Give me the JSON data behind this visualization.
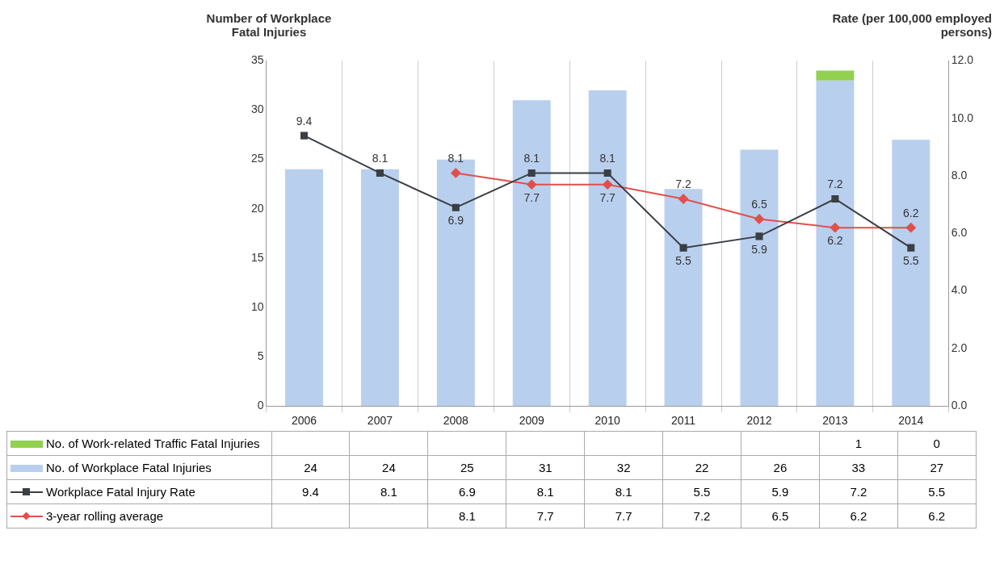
{
  "chart_data": {
    "type": "bar",
    "ylabel": "Number of Workplace Fatal Injuries",
    "y2label": "Rate (per 100,000 employed persons)",
    "categories": [
      "2006",
      "2007",
      "2008",
      "2009",
      "2010",
      "2011",
      "2012",
      "2013",
      "2014"
    ],
    "stacked": true,
    "series": [
      {
        "name": "No. of Workplace Fatal Injuries",
        "color": "#b9cfee",
        "values": [
          24,
          24,
          25,
          31,
          32,
          22,
          26,
          33,
          27
        ]
      },
      {
        "name": "No. of Work-related Traffic Fatal Injuries",
        "color": "#92d050",
        "values": [
          null,
          null,
          null,
          null,
          null,
          null,
          null,
          1,
          0
        ]
      },
      {
        "name": "Workplace Fatal Injury Rate",
        "type": "line",
        "axis": "y2",
        "marker": "square",
        "color": "#3a3f44",
        "values": [
          9.4,
          8.1,
          6.9,
          8.1,
          8.1,
          5.5,
          5.9,
          7.2,
          5.5
        ]
      },
      {
        "name": "3-year rolling average",
        "type": "line",
        "axis": "y2",
        "marker": "diamond",
        "color": "#e0504a",
        "values": [
          null,
          null,
          8.1,
          7.7,
          7.7,
          7.2,
          6.5,
          6.2,
          6.2
        ]
      }
    ],
    "annotations": [
      "9.4",
      "8.1",
      "6.9",
      "8.1",
      "8.1",
      "5.5",
      "5.9",
      "7.2",
      "5.5",
      "8.1",
      "7.7",
      "7.7",
      "7.2",
      "6.5",
      "6.2",
      "6.2"
    ],
    "ylim": [
      0,
      35
    ],
    "yticks": [
      0,
      5,
      10,
      15,
      20,
      25,
      30,
      35
    ],
    "y2lim": [
      0,
      12
    ],
    "y2ticks": [
      {
        "value": 0,
        "label": "0.0"
      },
      {
        "value": 2,
        "label": "2.0"
      },
      {
        "value": 4,
        "label": "4.0"
      },
      {
        "value": 6,
        "label": "6.0"
      },
      {
        "value": 8,
        "label": "8.0"
      },
      {
        "value": 10,
        "label": "10.0"
      },
      {
        "value": 12,
        "label": "12.0"
      }
    ],
    "grid": "x",
    "legend": "bottom",
    "data_labels": true
  }
}
